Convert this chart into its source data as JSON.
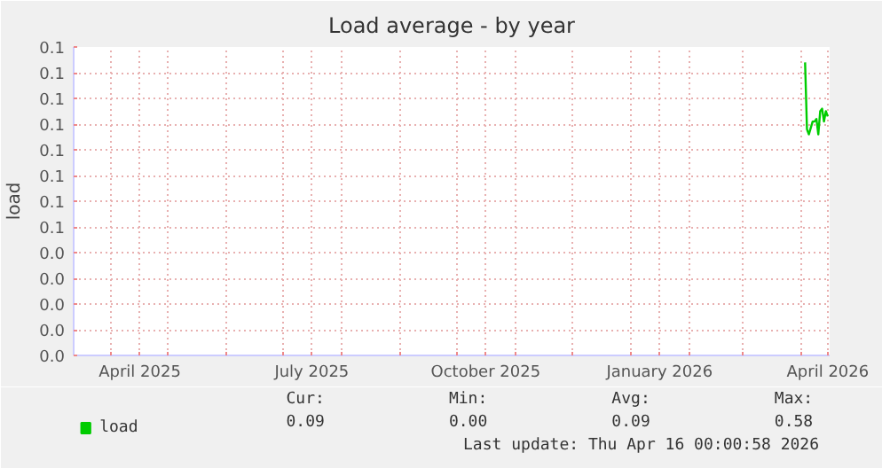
{
  "chart_data": {
    "type": "line",
    "title": "Load average - by year",
    "ylabel": "load",
    "xlim": [
      "2025-03-12",
      "2026-04-16"
    ],
    "ylim": [
      0,
      0.12
    ],
    "yticks": [
      {
        "value": 0,
        "label": "0.0"
      },
      {
        "value": 0.01,
        "label": "0.0"
      },
      {
        "value": 0.02,
        "label": "0.0"
      },
      {
        "value": 0.03,
        "label": "0.0"
      },
      {
        "value": 0.04,
        "label": "0.0"
      },
      {
        "value": 0.05,
        "label": "0.1"
      },
      {
        "value": 0.06,
        "label": "0.1"
      },
      {
        "value": 0.07,
        "label": "0.1"
      },
      {
        "value": 0.08,
        "label": "0.1"
      },
      {
        "value": 0.09,
        "label": "0.1"
      },
      {
        "value": 0.1,
        "label": "0.1"
      },
      {
        "value": 0.11,
        "label": "0.1"
      },
      {
        "value": 0.12,
        "label": "0.1"
      }
    ],
    "xticks": [
      {
        "value": "2025-04-01",
        "label": null
      },
      {
        "value": "2025-04-16",
        "label": "April 2025"
      },
      {
        "value": "2025-05-01",
        "label": null
      },
      {
        "value": "2025-06-01",
        "label": null
      },
      {
        "value": "2025-07-01",
        "label": null
      },
      {
        "value": "2025-07-16",
        "label": "July 2025"
      },
      {
        "value": "2025-08-01",
        "label": null
      },
      {
        "value": "2025-09-01",
        "label": null
      },
      {
        "value": "2025-10-01",
        "label": null
      },
      {
        "value": "2025-10-16",
        "label": "October 2025"
      },
      {
        "value": "2025-11-01",
        "label": null
      },
      {
        "value": "2025-12-01",
        "label": null
      },
      {
        "value": "2026-01-01",
        "label": null
      },
      {
        "value": "2026-01-16",
        "label": "January 2026"
      },
      {
        "value": "2026-02-01",
        "label": null
      },
      {
        "value": "2026-03-01",
        "label": null
      },
      {
        "value": "2026-04-01",
        "label": null
      },
      {
        "value": "2026-04-15",
        "label": "April 2026"
      }
    ],
    "grid": true,
    "legend": "bottom",
    "marker": "none",
    "line_style": "solid",
    "series": [
      {
        "name": "load",
        "color": "#00cc00",
        "x": [
          "2026-04-03",
          "2026-04-04",
          "2026-04-05",
          "2026-04-07",
          "2026-04-08",
          "2026-04-09",
          "2026-04-10",
          "2026-04-11",
          "2026-04-12",
          "2026-04-13",
          "2026-04-14",
          "2026-04-15"
        ],
        "values": [
          0.114,
          0.088,
          0.086,
          0.091,
          0.091,
          0.092,
          0.086,
          0.095,
          0.096,
          0.091,
          0.095,
          0.093
        ]
      }
    ],
    "annotations": [
      "Cur:",
      "Min:",
      "Avg:",
      "Max:",
      "0.09",
      "0.00",
      "0.09",
      "0.58",
      "Last update: Thu Apr 16 00:00:58 2026"
    ]
  }
}
